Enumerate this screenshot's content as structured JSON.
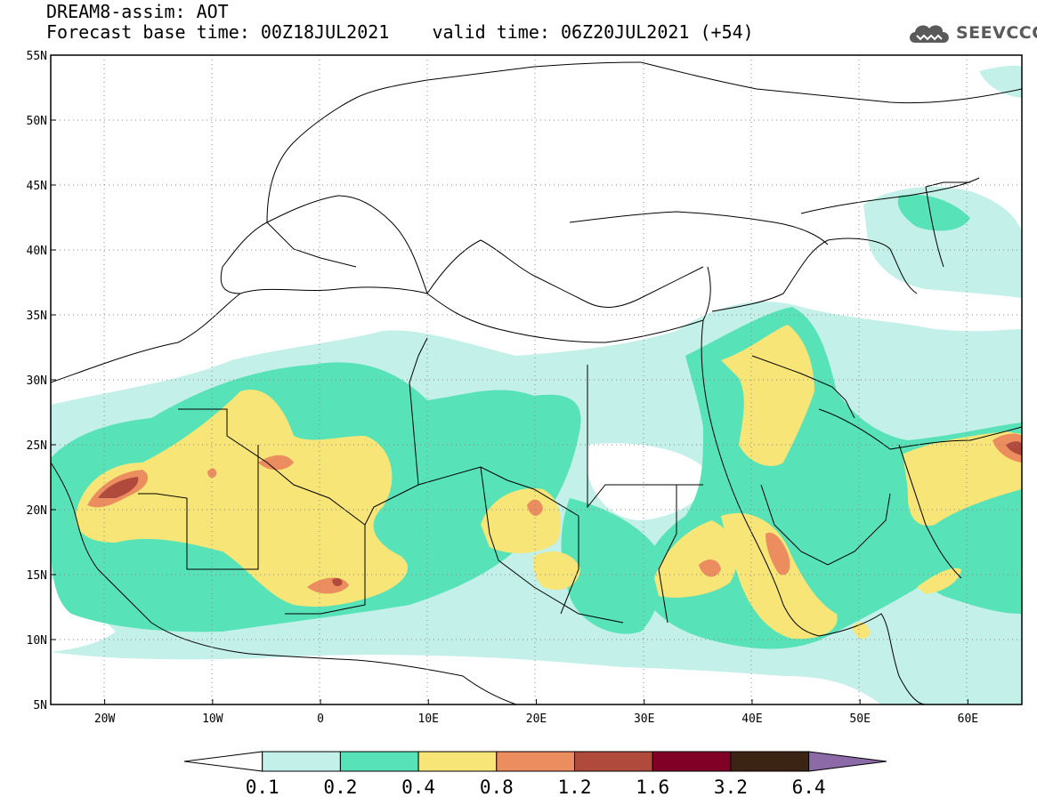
{
  "header": {
    "line1": "DREAM8-assim: AOT",
    "line2": "Forecast base time: 00Z18JUL2021    valid time: 06Z20JUL2021 (+54)"
  },
  "logo": {
    "text": "SEEVCCC",
    "icon": "cloud-icon"
  },
  "map": {
    "lat_labels": [
      "55N",
      "50N",
      "45N",
      "40N",
      "35N",
      "30N",
      "25N",
      "20N",
      "15N",
      "10N",
      "5N"
    ],
    "lon_labels": [
      "20W",
      "10W",
      "0",
      "10E",
      "20E",
      "30E",
      "40E",
      "50E",
      "60E"
    ],
    "lon_range": [
      -25,
      65
    ],
    "lat_range": [
      5,
      55
    ],
    "grid": "dotted"
  },
  "colorbar": {
    "labels": [
      "0.1",
      "0.2",
      "0.4",
      "0.8",
      "1.2",
      "1.6",
      "3.2",
      "6.4"
    ],
    "colors": [
      "#ffffff",
      "#c3f0e9",
      "#57e2b7",
      "#f7e677",
      "#eb8d5f",
      "#b04a3c",
      "#800026",
      "#3b2414",
      "#8c6aa8"
    ]
  },
  "colors": {
    "c01": "#c3f0e9",
    "c02": "#57e2b7",
    "c04": "#f7e677",
    "c08": "#eb8d5f",
    "c12": "#b04a3c"
  }
}
